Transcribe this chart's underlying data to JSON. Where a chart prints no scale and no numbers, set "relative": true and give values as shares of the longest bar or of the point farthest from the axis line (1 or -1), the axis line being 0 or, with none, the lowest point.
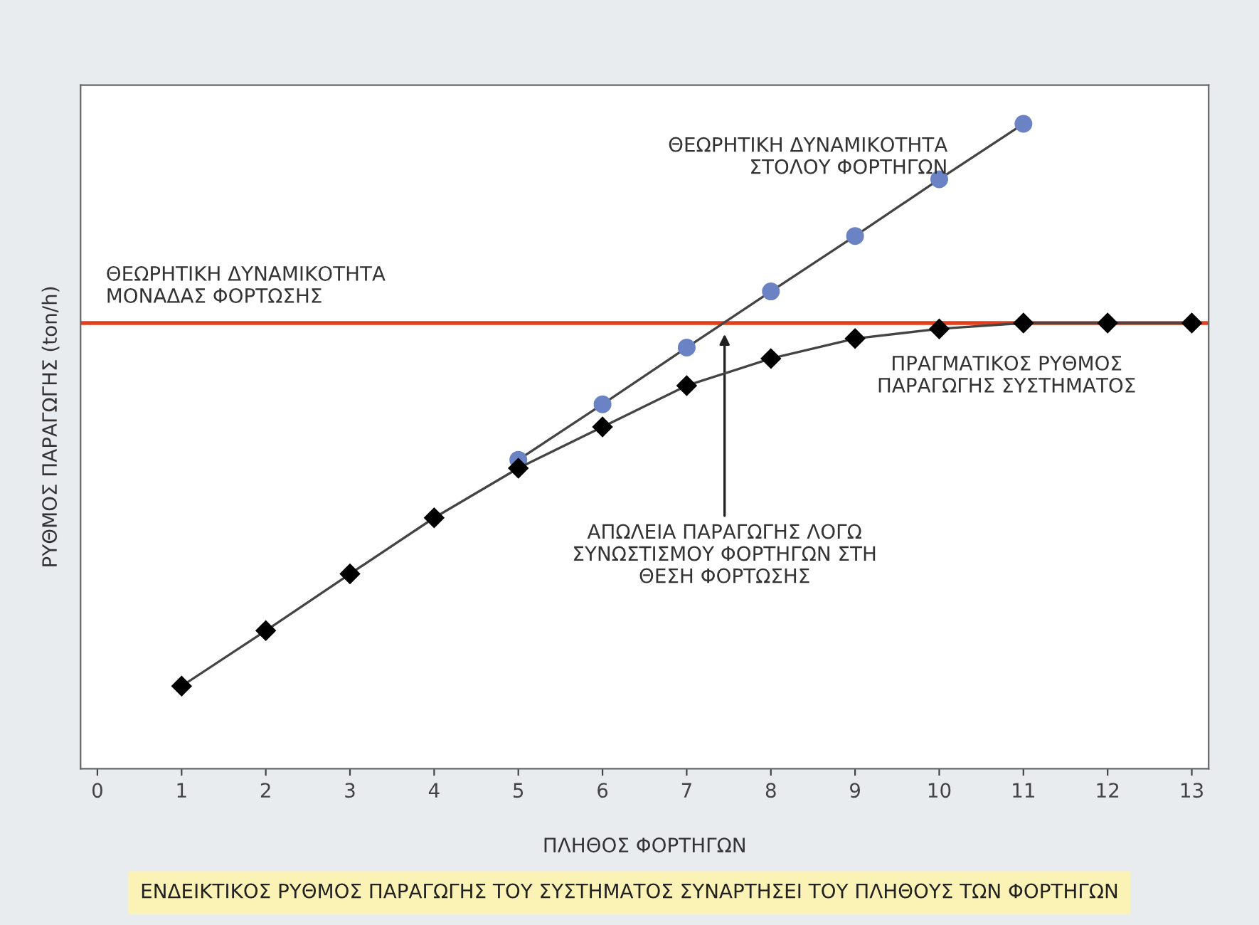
{
  "chart_data": {
    "type": "line",
    "relative": true,
    "xlabel": "ΠΛΗΘΟΣ ΦΟΡΤΗΓΩΝ",
    "ylabel": "ΡΥΘΜΟΣ ΠΑΡΑΓΩΓΗΣ (ton/h)",
    "xlim": [
      -0.2,
      13.2
    ],
    "xticks": [
      0,
      1,
      2,
      3,
      4,
      5,
      6,
      7,
      8,
      9,
      10,
      11,
      12,
      13
    ],
    "grid": false,
    "legend": false,
    "tick_labels": "x",
    "series": [
      {
        "name": "ΘΕΩΡΗΤΙΚΗ ΔΥΝΑΜΙΚΟΤΗΤΑ\nΣΤΟΛΟΥ ΦΟΡΤΗΓΩΝ",
        "color": "#6b83c4",
        "marker": "circle",
        "x": [
          5,
          6,
          7,
          8,
          9,
          10,
          11
        ],
        "values": [
          0.479,
          0.565,
          0.653,
          0.74,
          0.826,
          0.914,
          1
        ]
      },
      {
        "name": "ΠΡΑΓΜΑΤΙΚΟΣ ΡΥΘΜΟΣ\nΠΑΡΑΓΩΓΗΣ ΣΥΣΤΗΜΑΤΟΣ",
        "color": "#000000",
        "marker": "diamond",
        "x": [
          1,
          2,
          3,
          4,
          5,
          6,
          7,
          8,
          9,
          10,
          11,
          12,
          13
        ],
        "values": [
          0.128,
          0.214,
          0.302,
          0.389,
          0.466,
          0.53,
          0.594,
          0.636,
          0.667,
          0.682,
          0.691,
          0.691,
          0.691
        ]
      }
    ],
    "ref_lines": [
      {
        "axis": "y",
        "value": 0.691,
        "label": "ΘΕΩΡΗΤΙΚΗ ΔΥΝΑΜΙΚΟΤΗΤΑ\nΜΟΝΑΔΑΣ ΦΟΡΤΩΣΗΣ",
        "color": "#e0401e"
      }
    ],
    "annotations": [
      {
        "text": "ΑΠΩΛΕΙΑ ΠΑΡΑΓΩΓΗΣ ΛΟΓΩ\nΣΥΝΩΣΤΙΣΜΟΥ ΦΟΡΤΗΓΩΝ ΣΤΗ\nΘΕΣΗ ΦΟΡΤΩΣΗΣ",
        "x": 7.45,
        "y": 0.68
      },
      "ΕΝΔΕΙΚΤΙΚΟΣ ΡΥΘΜΟΣ ΠΑΡΑΓΩΓΗΣ ΤΟΥ ΣΥΣΤΗΜΑΤΟΣ ΣΥΝΑΡΤΗΣΕΙ ΤΟΥ ΠΛΗΘΟΥΣ ΤΩΝ ΦΟΡΤΗΓΩΝ"
    ]
  }
}
